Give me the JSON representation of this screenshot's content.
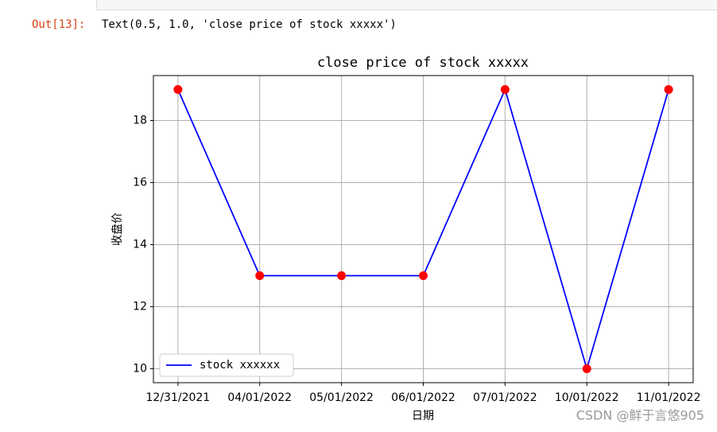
{
  "notebook": {
    "out_prompt": "Out[13]:",
    "out_text": "Text(0.5, 1.0, 'close price of stock xxxxx')",
    "watermark": "CSDN @鲜于言悠905"
  },
  "chart_data": {
    "type": "line",
    "title": "close price of stock xxxxx",
    "xlabel": "日期",
    "ylabel": "收盘价",
    "categories": [
      "12/31/2021",
      "04/01/2022",
      "05/01/2022",
      "06/01/2022",
      "07/01/2022",
      "10/01/2022",
      "11/01/2022"
    ],
    "series": [
      {
        "name": "stock xxxxxx",
        "color": "#0000ff",
        "marker_color": "#ff0000",
        "values": [
          19,
          13,
          13,
          13,
          19,
          10,
          19
        ]
      }
    ],
    "ylim": [
      9.55,
      19.45
    ],
    "yticks": [
      10,
      12,
      14,
      16,
      18
    ],
    "grid": true,
    "legend": "lower left"
  }
}
